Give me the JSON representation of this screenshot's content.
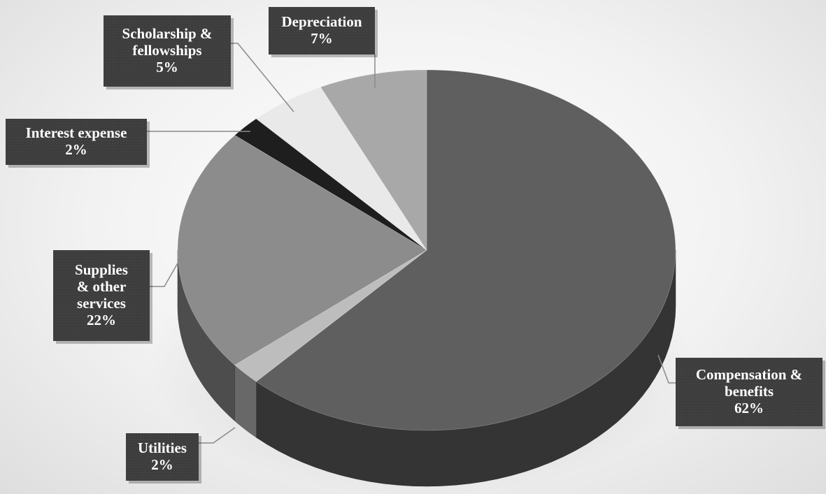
{
  "chart_data": {
    "type": "pie",
    "style": "3d-exploded-grayscale",
    "title": "",
    "legend": "none",
    "slices": [
      {
        "label": "Compensation & benefits",
        "label_lines": [
          "Compensation &",
          "benefits",
          "62%"
        ],
        "value": 62,
        "percent": "62%",
        "color": "#5f5f5f"
      },
      {
        "label": "Utilities",
        "label_lines": [
          "Utilities",
          "2%"
        ],
        "value": 2,
        "percent": "2%",
        "color": "#bdbdbd"
      },
      {
        "label": "Supplies & other services",
        "label_lines": [
          "Supplies",
          "& other",
          "services",
          "22%"
        ],
        "value": 22,
        "percent": "22%",
        "color": "#8c8c8c"
      },
      {
        "label": "Interest expense",
        "label_lines": [
          "Interest expense",
          "2%"
        ],
        "value": 2,
        "percent": "2%",
        "color": "#1e1e1e"
      },
      {
        "label": "Scholarship & fellowships",
        "label_lines": [
          "Scholarship &",
          "fellowships",
          "5%"
        ],
        "value": 5,
        "percent": "5%",
        "color": "#e9e9e9"
      },
      {
        "label": "Depreciation",
        "label_lines": [
          "Depreciation",
          "7%"
        ],
        "value": 7,
        "percent": "7%",
        "color": "#a8a8a8"
      }
    ]
  }
}
